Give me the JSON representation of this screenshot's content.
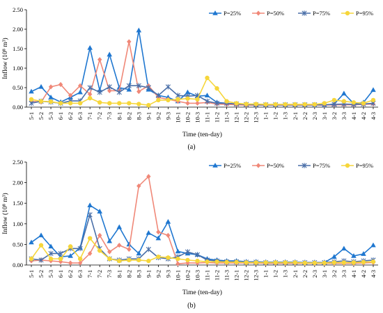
{
  "panel_labels": [
    "(a)",
    "(b)"
  ],
  "chart_data": [
    {
      "type": "line",
      "panel": "(a)",
      "xlabel": "Time (ten-day)",
      "ylabel": "Inflow (10⁸ m³)",
      "ylim": [
        0,
        2.5
      ],
      "yticks": [
        "0.00",
        "0.50",
        "1.00",
        "1.50",
        "2.00",
        "2.50"
      ],
      "grid": false,
      "legend_position": "top-right",
      "categories": [
        "5-1",
        "5-2",
        "5-3",
        "6-1",
        "6-2",
        "6-3",
        "7-1",
        "7-2",
        "7-3",
        "8-1",
        "8-2",
        "8-3",
        "9-1",
        "9-2",
        "9-3",
        "10-1",
        "10-2",
        "10-3",
        "11-1",
        "11-2",
        "11-3",
        "12-1",
        "12-2",
        "12-3",
        "1-1",
        "1-2",
        "1-3",
        "2-1",
        "2-2",
        "2-3",
        "3-1",
        "3-2",
        "3-3",
        "4-1",
        "4-2",
        "4-3"
      ],
      "series": [
        {
          "name": "P=25%",
          "color": "#1f77d0",
          "marker": "triangle",
          "values": [
            0.4,
            0.52,
            0.25,
            0.13,
            0.25,
            0.38,
            1.52,
            0.43,
            1.35,
            0.5,
            0.45,
            1.97,
            0.45,
            0.3,
            0.25,
            0.15,
            0.38,
            0.28,
            0.3,
            0.12,
            0.1,
            0.08,
            0.07,
            0.06,
            0.06,
            0.06,
            0.06,
            0.06,
            0.06,
            0.05,
            0.05,
            0.08,
            0.35,
            0.09,
            0.12,
            0.44
          ]
        },
        {
          "name": "P=50%",
          "color": "#f08878",
          "marker": "diamond",
          "values": [
            0.15,
            0.13,
            0.52,
            0.58,
            0.3,
            0.55,
            0.33,
            1.22,
            0.42,
            0.42,
            1.68,
            0.4,
            0.55,
            0.25,
            0.2,
            0.15,
            0.1,
            0.1,
            0.12,
            0.08,
            0.07,
            0.06,
            0.05,
            0.05,
            0.05,
            0.05,
            0.05,
            0.05,
            0.05,
            0.05,
            0.05,
            0.06,
            0.06,
            0.06,
            0.07,
            0.08
          ]
        },
        {
          "name": "P=75%",
          "color": "#4a6fa8",
          "marker": "star",
          "values": [
            0.1,
            0.15,
            0.13,
            0.1,
            0.16,
            0.16,
            0.5,
            0.38,
            0.52,
            0.38,
            0.55,
            0.55,
            0.5,
            0.3,
            0.52,
            0.3,
            0.28,
            0.3,
            0.15,
            0.1,
            0.1,
            0.08,
            0.07,
            0.06,
            0.06,
            0.06,
            0.06,
            0.06,
            0.06,
            0.06,
            0.06,
            0.07,
            0.08,
            0.07,
            0.08,
            0.1
          ]
        },
        {
          "name": "P=95%",
          "color": "#f6d63b",
          "marker": "circle",
          "values": [
            0.2,
            0.15,
            0.14,
            0.1,
            0.1,
            0.1,
            0.23,
            0.12,
            0.1,
            0.1,
            0.1,
            0.08,
            0.05,
            0.18,
            0.18,
            0.2,
            0.22,
            0.2,
            0.75,
            0.48,
            0.15,
            0.1,
            0.08,
            0.08,
            0.07,
            0.07,
            0.07,
            0.07,
            0.07,
            0.07,
            0.1,
            0.18,
            0.15,
            0.12,
            0.1,
            0.18
          ]
        }
      ]
    },
    {
      "type": "line",
      "panel": "(b)",
      "xlabel": "Time (ten-day)",
      "ylabel": "Inflow (10⁸ m³)",
      "ylim": [
        0,
        2.5
      ],
      "yticks": [
        "0.00",
        "0.50",
        "1.00",
        "1.50",
        "2.00",
        "2.50"
      ],
      "grid": false,
      "legend_position": "top-right",
      "categories": [
        "5-1",
        "5-2",
        "5-3",
        "6-1",
        "6-2",
        "6-3",
        "7-1",
        "7-2",
        "7-3",
        "8-1",
        "8-2",
        "8-3",
        "9-1",
        "9-2",
        "9-3",
        "10-1",
        "10-2",
        "10-3",
        "11-1",
        "11-2",
        "11-3",
        "12-1",
        "12-2",
        "12-3",
        "1-1",
        "1-2",
        "1-3",
        "2-1",
        "2-2",
        "2-3",
        "3-1",
        "3-2",
        "3-3",
        "4-1",
        "4-2",
        "4-3"
      ],
      "series": [
        {
          "name": "P=25%",
          "color": "#1f77d0",
          "marker": "triangle",
          "values": [
            0.55,
            0.72,
            0.45,
            0.2,
            0.22,
            0.42,
            1.45,
            1.3,
            0.58,
            0.92,
            0.5,
            0.28,
            0.78,
            0.65,
            1.05,
            0.33,
            0.28,
            0.25,
            0.15,
            0.12,
            0.1,
            0.1,
            0.08,
            0.08,
            0.07,
            0.07,
            0.07,
            0.07,
            0.06,
            0.06,
            0.06,
            0.2,
            0.4,
            0.22,
            0.27,
            0.48
          ]
        },
        {
          "name": "P=50%",
          "color": "#f08878",
          "marker": "diamond",
          "values": [
            0.1,
            0.12,
            0.1,
            0.08,
            0.05,
            0.05,
            0.28,
            0.72,
            0.32,
            0.48,
            0.38,
            1.92,
            2.15,
            0.8,
            0.72,
            0.03,
            0.05,
            0.05,
            0.06,
            0.05,
            0.05,
            0.05,
            0.05,
            0.05,
            0.04,
            0.04,
            0.04,
            0.04,
            0.04,
            0.04,
            0.04,
            0.04,
            0.04,
            0.04,
            0.05,
            0.06
          ]
        },
        {
          "name": "P=75%",
          "color": "#4a6fa8",
          "marker": "star",
          "values": [
            0.15,
            0.12,
            0.28,
            0.28,
            0.4,
            0.4,
            1.22,
            0.4,
            0.15,
            0.12,
            0.15,
            0.15,
            0.38,
            0.18,
            0.15,
            0.2,
            0.32,
            0.25,
            0.12,
            0.1,
            0.08,
            0.08,
            0.07,
            0.07,
            0.06,
            0.06,
            0.06,
            0.06,
            0.06,
            0.06,
            0.06,
            0.08,
            0.1,
            0.08,
            0.1,
            0.12
          ]
        },
        {
          "name": "P=95%",
          "color": "#f6d63b",
          "marker": "circle",
          "values": [
            0.15,
            0.48,
            0.15,
            0.15,
            0.45,
            0.15,
            0.65,
            0.35,
            0.15,
            0.1,
            0.12,
            0.12,
            0.1,
            0.2,
            0.18,
            0.15,
            0.12,
            0.1,
            0.08,
            0.08,
            0.07,
            0.07,
            0.06,
            0.06,
            0.06,
            0.06,
            0.06,
            0.06,
            0.05,
            0.05,
            0.05,
            0.06,
            0.06,
            0.06,
            0.07,
            0.08
          ]
        }
      ]
    }
  ]
}
